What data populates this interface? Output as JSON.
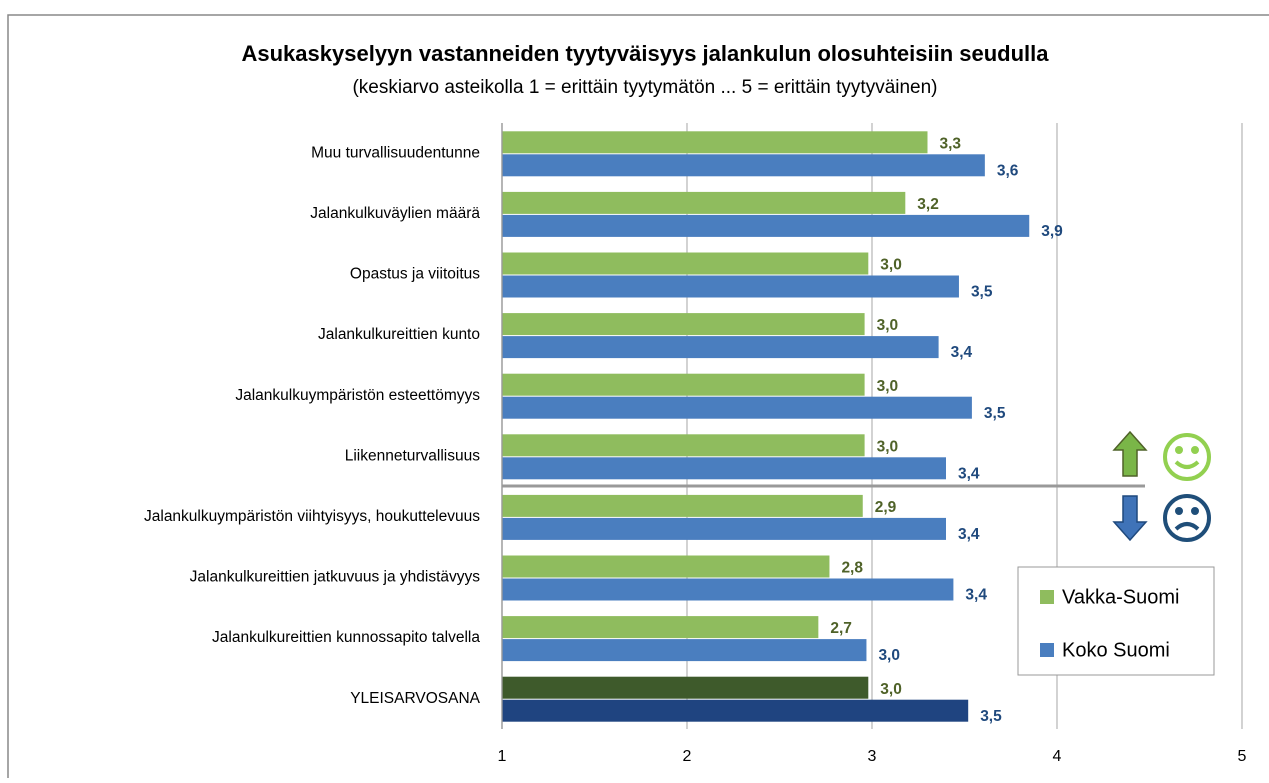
{
  "chart_data": {
    "type": "hbar",
    "title": "Asukaskyselyyn vastanneiden tyytyväisyys jalankulun olosuhteisiin seudulla",
    "subtitle": "(keskiarvo asteikolla 1 = erittäin tyytymätön ... 5 = erittäin tyytyväinen)",
    "categories": [
      "Muu turvallisuudentunne",
      "Jalankulkuväylien määrä",
      "Opastus ja viitoitus",
      "Jalankulkureittien kunto",
      "Jalankulkuympäristön esteettömyys",
      "Liikenneturvallisuus",
      "Jalankulkuympäristön viihtyisyys, houkuttelevuus",
      "Jalankulkureittien jatkuvuus ja yhdistävyys",
      "Jalankulkureittien kunnossapito talvella",
      "YLEISARVOSANA"
    ],
    "series": [
      {
        "name": "Vakka-Suomi",
        "color": "#8fbc5e",
        "label_color": "#4f6228",
        "colors": [
          "#8fbc5e",
          "#8fbc5e",
          "#8fbc5e",
          "#8fbc5e",
          "#8fbc5e",
          "#8fbc5e",
          "#8fbc5e",
          "#8fbc5e",
          "#8fbc5e",
          "#3e5a2b"
        ],
        "values": [
          3.3,
          3.18,
          2.98,
          2.96,
          2.96,
          2.96,
          2.95,
          2.77,
          2.71,
          2.98
        ],
        "value_labels": [
          "3,3",
          "3,2",
          "3,0",
          "3,0",
          "3,0",
          "3,0",
          "2,9",
          "2,8",
          "2,7",
          "3,0"
        ]
      },
      {
        "name": "Koko Suomi",
        "color": "#4a7ebf",
        "label_color": "#1f497d",
        "colors": [
          "#4a7ebf",
          "#4a7ebf",
          "#4a7ebf",
          "#4a7ebf",
          "#4a7ebf",
          "#4a7ebf",
          "#4a7ebf",
          "#4a7ebf",
          "#4a7ebf",
          "#1f4480"
        ],
        "values": [
          3.61,
          3.85,
          3.47,
          3.36,
          3.54,
          3.4,
          3.4,
          3.44,
          2.97,
          3.52
        ],
        "value_labels": [
          "3,6",
          "3,9",
          "3,5",
          "3,4",
          "3,5",
          "3,4",
          "3,4",
          "3,4",
          "3,0",
          "3,5"
        ]
      }
    ],
    "xlim": [
      1,
      5
    ],
    "xticks": [
      1,
      2,
      3,
      4,
      5
    ],
    "grid": true
  }
}
